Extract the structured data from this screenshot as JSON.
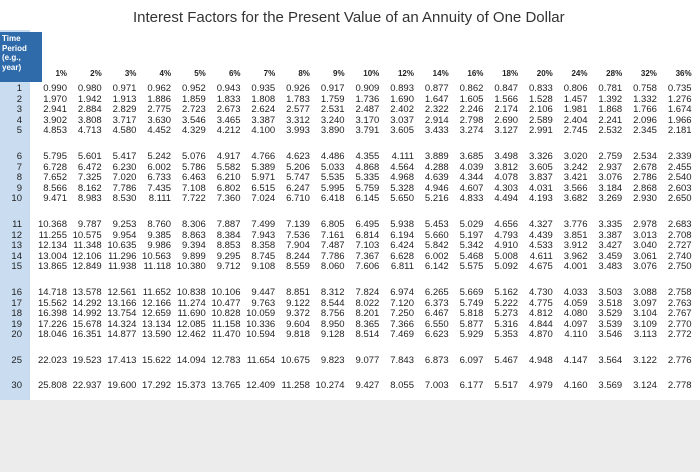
{
  "title": "Interest Factors for the Present Value of an Annuity of One Dollar",
  "table": {
    "period_header": "Time Period (e.g., year)",
    "rates": [
      "1%",
      "2%",
      "3%",
      "4%",
      "5%",
      "6%",
      "7%",
      "8%",
      "9%",
      "10%",
      "12%",
      "14%",
      "16%",
      "18%",
      "20%",
      "24%",
      "28%",
      "32%",
      "36%"
    ],
    "rows": [
      {
        "period": "1",
        "cells": [
          "0.990",
          "0.980",
          "0.971",
          "0.962",
          "0.952",
          "0.943",
          "0.935",
          "0.926",
          "0.917",
          "0.909",
          "0.893",
          "0.877",
          "0.862",
          "0.847",
          "0.833",
          "0.806",
          "0.781",
          "0.758",
          "0.735"
        ]
      },
      {
        "period": "2",
        "cells": [
          "1.970",
          "1.942",
          "1.913",
          "1.886",
          "1.859",
          "1.833",
          "1.808",
          "1.783",
          "1.759",
          "1.736",
          "1.690",
          "1.647",
          "1.605",
          "1.566",
          "1.528",
          "1.457",
          "1.392",
          "1.332",
          "1.276"
        ]
      },
      {
        "period": "3",
        "cells": [
          "2.941",
          "2.884",
          "2.829",
          "2.775",
          "2.723",
          "2.673",
          "2.624",
          "2.577",
          "2.531",
          "2.487",
          "2.402",
          "2.322",
          "2.246",
          "2.174",
          "2.106",
          "1.981",
          "1.868",
          "1.766",
          "1.674"
        ]
      },
      {
        "period": "4",
        "cells": [
          "3.902",
          "3.808",
          "3.717",
          "3.630",
          "3.546",
          "3.465",
          "3.387",
          "3.312",
          "3.240",
          "3.170",
          "3.037",
          "2.914",
          "2.798",
          "2.690",
          "2.589",
          "2.404",
          "2.241",
          "2.096",
          "1.966"
        ]
      },
      {
        "period": "5",
        "cells": [
          "4.853",
          "4.713",
          "4.580",
          "4.452",
          "4.329",
          "4.212",
          "4.100",
          "3.993",
          "3.890",
          "3.791",
          "3.605",
          "3.433",
          "3.274",
          "3.127",
          "2.991",
          "2.745",
          "2.532",
          "2.345",
          "2.181"
        ]
      },
      {
        "period": "6",
        "cells": [
          "5.795",
          "5.601",
          "5.417",
          "5.242",
          "5.076",
          "4.917",
          "4.766",
          "4.623",
          "4.486",
          "4.355",
          "4.111",
          "3.889",
          "3.685",
          "3.498",
          "3.326",
          "3.020",
          "2.759",
          "2.534",
          "2.339"
        ]
      },
      {
        "period": "7",
        "cells": [
          "6.728",
          "6.472",
          "6.230",
          "6.002",
          "5.786",
          "5.582",
          "5.389",
          "5.206",
          "5.033",
          "4.868",
          "4.564",
          "4.288",
          "4.039",
          "3.812",
          "3.605",
          "3.242",
          "2.937",
          "2.678",
          "2.455"
        ]
      },
      {
        "period": "8",
        "cells": [
          "7.652",
          "7.325",
          "7.020",
          "6.733",
          "6.463",
          "6.210",
          "5.971",
          "5.747",
          "5.535",
          "5.335",
          "4.968",
          "4.639",
          "4.344",
          "4.078",
          "3.837",
          "3.421",
          "3.076",
          "2.786",
          "2.540"
        ]
      },
      {
        "period": "9",
        "cells": [
          "8.566",
          "8.162",
          "7.786",
          "7.435",
          "7.108",
          "6.802",
          "6.515",
          "6.247",
          "5.995",
          "5.759",
          "5.328",
          "4.946",
          "4.607",
          "4.303",
          "4.031",
          "3.566",
          "3.184",
          "2.868",
          "2.603"
        ]
      },
      {
        "period": "10",
        "cells": [
          "9.471",
          "8.983",
          "8.530",
          "8.111",
          "7.722",
          "7.360",
          "7.024",
          "6.710",
          "6.418",
          "6.145",
          "5.650",
          "5.216",
          "4.833",
          "4.494",
          "4.193",
          "3.682",
          "3.269",
          "2.930",
          "2.650"
        ]
      },
      {
        "period": "11",
        "cells": [
          "10.368",
          "9.787",
          "9.253",
          "8.760",
          "8.306",
          "7.887",
          "7.499",
          "7.139",
          "6.805",
          "6.495",
          "5.938",
          "5.453",
          "5.029",
          "4.656",
          "4.327",
          "3.776",
          "3.335",
          "2.978",
          "2.683"
        ]
      },
      {
        "period": "12",
        "cells": [
          "11.255",
          "10.575",
          "9.954",
          "9.385",
          "8.863",
          "8.384",
          "7.943",
          "7.536",
          "7.161",
          "6.814",
          "6.194",
          "5.660",
          "5.197",
          "4.793",
          "4.439",
          "3.851",
          "3.387",
          "3.013",
          "2.708"
        ]
      },
      {
        "period": "13",
        "cells": [
          "12.134",
          "11.348",
          "10.635",
          "9.986",
          "9.394",
          "8.853",
          "8.358",
          "7.904",
          "7.487",
          "7.103",
          "6.424",
          "5.842",
          "5.342",
          "4.910",
          "4.533",
          "3.912",
          "3.427",
          "3.040",
          "2.727"
        ]
      },
      {
        "period": "14",
        "cells": [
          "13.004",
          "12.106",
          "11.296",
          "10.563",
          "9.899",
          "9.295",
          "8.745",
          "8.244",
          "7.786",
          "7.367",
          "6.628",
          "6.002",
          "5.468",
          "5.008",
          "4.611",
          "3.962",
          "3.459",
          "3.061",
          "2.740"
        ]
      },
      {
        "period": "15",
        "cells": [
          "13.865",
          "12.849",
          "11.938",
          "11.118",
          "10.380",
          "9.712",
          "9.108",
          "8.559",
          "8.060",
          "7.606",
          "6.811",
          "6.142",
          "5.575",
          "5.092",
          "4.675",
          "4.001",
          "3.483",
          "3.076",
          "2.750"
        ]
      },
      {
        "period": "16",
        "cells": [
          "14.718",
          "13.578",
          "12.561",
          "11.652",
          "10.838",
          "10.106",
          "9.447",
          "8.851",
          "8.312",
          "7.824",
          "6.974",
          "6.265",
          "5.669",
          "5.162",
          "4.730",
          "4.033",
          "3.503",
          "3.088",
          "2.758"
        ]
      },
      {
        "period": "17",
        "cells": [
          "15.562",
          "14.292",
          "13.166",
          "12.166",
          "11.274",
          "10.477",
          "9.763",
          "9.122",
          "8.544",
          "8.022",
          "7.120",
          "6.373",
          "5.749",
          "5.222",
          "4.775",
          "4.059",
          "3.518",
          "3.097",
          "2.763"
        ]
      },
      {
        "period": "18",
        "cells": [
          "16.398",
          "14.992",
          "13.754",
          "12.659",
          "11.690",
          "10.828",
          "10.059",
          "9.372",
          "8.756",
          "8.201",
          "7.250",
          "6.467",
          "5.818",
          "5.273",
          "4.812",
          "4.080",
          "3.529",
          "3.104",
          "2.767"
        ]
      },
      {
        "period": "19",
        "cells": [
          "17.226",
          "15.678",
          "14.324",
          "13.134",
          "12.085",
          "11.158",
          "10.336",
          "9.604",
          "8.950",
          "8.365",
          "7.366",
          "6.550",
          "5.877",
          "5.316",
          "4.844",
          "4.097",
          "3.539",
          "3.109",
          "2.770"
        ]
      },
      {
        "period": "20",
        "cells": [
          "18.046",
          "16.351",
          "14.877",
          "13.590",
          "12.462",
          "11.470",
          "10.594",
          "9.818",
          "9.128",
          "8.514",
          "7.469",
          "6.623",
          "5.929",
          "5.353",
          "4.870",
          "4.110",
          "3.546",
          "3.113",
          "2.772"
        ]
      },
      {
        "period": "25",
        "cells": [
          "22.023",
          "19.523",
          "17.413",
          "15.622",
          "14.094",
          "12.783",
          "11.654",
          "10.675",
          "9.823",
          "9.077",
          "7.843",
          "6.873",
          "6.097",
          "5.467",
          "4.948",
          "4.147",
          "3.564",
          "3.122",
          "2.776"
        ]
      },
      {
        "period": "30",
        "cells": [
          "25.808",
          "22.937",
          "19.600",
          "17.292",
          "15.373",
          "13.765",
          "12.409",
          "11.258",
          "10.274",
          "9.427",
          "8.055",
          "7.003",
          "6.177",
          "5.517",
          "4.979",
          "4.160",
          "3.569",
          "3.124",
          "2.778"
        ]
      }
    ]
  }
}
